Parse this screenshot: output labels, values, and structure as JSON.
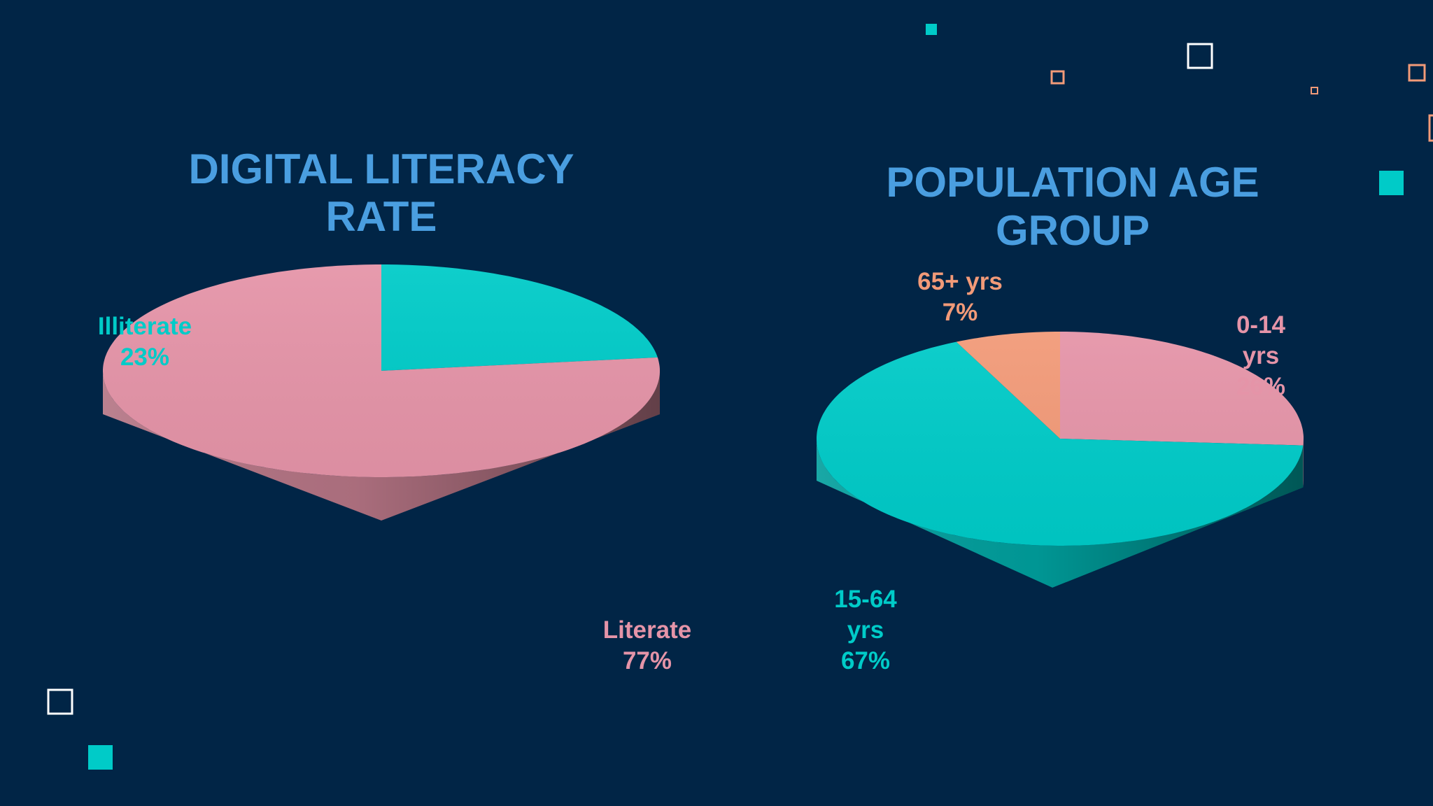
{
  "colors": {
    "background": "#012546",
    "title": "#4a9ee0",
    "pink": "#e594a8",
    "teal": "#00cbc8",
    "orange": "#f29a78",
    "square_white": "#ffffff"
  },
  "chart_data": [
    {
      "type": "pie",
      "title_lines": [
        "DIGITAL LITERACY",
        "RATE"
      ],
      "slices": [
        {
          "label": "Illiterate",
          "value": 23,
          "value_text": "23%",
          "color": "#00cbc8"
        },
        {
          "label": "Literate",
          "value": 77,
          "value_text": "77%",
          "color": "#e594a8"
        }
      ]
    },
    {
      "type": "pie",
      "title_lines": [
        "POPULATION AGE",
        "GROUP"
      ],
      "slices": [
        {
          "label": "0-14 yrs",
          "label_lines": [
            "0-14",
            "yrs"
          ],
          "value": 26,
          "value_text": "26%",
          "color": "#e594a8"
        },
        {
          "label": "15-64 yrs",
          "label_lines": [
            "15-64",
            "yrs"
          ],
          "value": 67,
          "value_text": "67%",
          "color": "#00cbc8"
        },
        {
          "label": "65+ yrs",
          "label_lines": [
            "65+ yrs"
          ],
          "value": 7,
          "value_text": "7%",
          "color": "#f29a78"
        }
      ]
    }
  ]
}
